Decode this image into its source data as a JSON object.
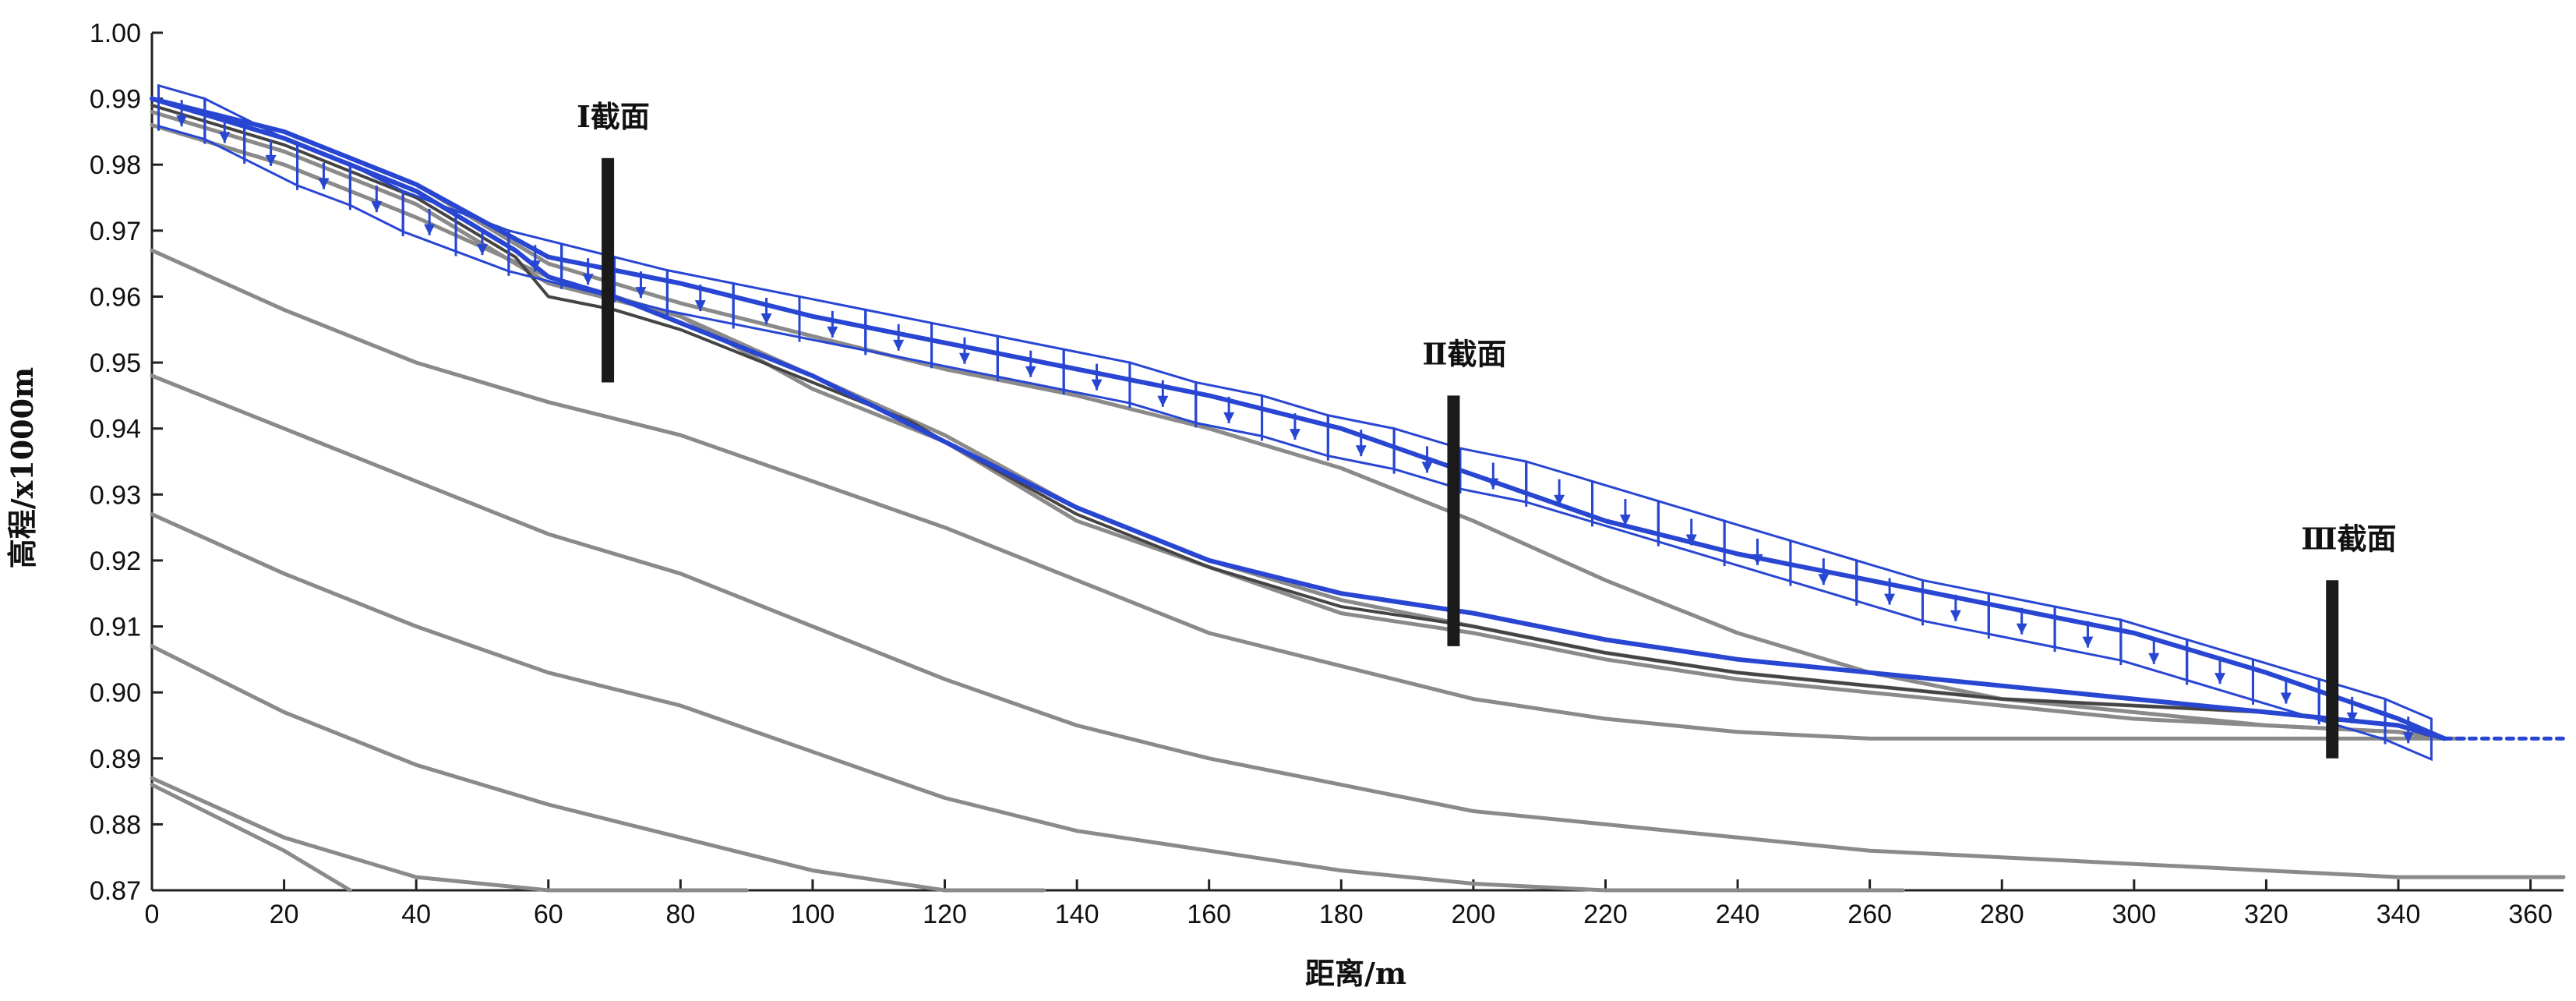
{
  "chart_data": {
    "type": "line",
    "title": "",
    "xlabel": "距离/m",
    "ylabel": "高程/x1000m",
    "xlim": [
      0,
      365
    ],
    "ylim": [
      0.87,
      1.0
    ],
    "xticks": [
      0,
      20,
      40,
      60,
      80,
      100,
      120,
      140,
      160,
      180,
      200,
      220,
      240,
      260,
      280,
      300,
      320,
      340,
      360
    ],
    "yticks": [
      "0.87",
      "0.88",
      "0.89",
      "0.90",
      "0.91",
      "0.92",
      "0.93",
      "0.94",
      "0.95",
      "0.96",
      "0.97",
      "0.98",
      "0.99",
      "1.00"
    ],
    "grid": false,
    "colors": {
      "gray": "#8a8a8a",
      "dark": "#444444",
      "blue": "#2846d2",
      "bar": "#1a1a1a"
    },
    "sections": [
      {
        "label": "Ⅰ截面",
        "x": 69,
        "y_top": 0.981,
        "y_bottom": 0.947
      },
      {
        "label": "Ⅱ截面",
        "x": 197,
        "y_top": 0.945,
        "y_bottom": 0.907
      },
      {
        "label": "Ⅲ截面",
        "x": 330,
        "y_top": 0.917,
        "y_bottom": 0.89
      }
    ],
    "series": [
      {
        "style": "gray",
        "x": [
          0,
          20,
          40,
          60,
          80,
          100,
          120,
          140,
          160,
          180,
          200,
          220,
          240,
          260,
          280,
          300,
          320,
          340,
          346
        ],
        "y": [
          0.99,
          0.985,
          0.977,
          0.965,
          0.959,
          0.954,
          0.949,
          0.945,
          0.94,
          0.934,
          0.926,
          0.917,
          0.909,
          0.903,
          0.899,
          0.897,
          0.895,
          0.894,
          0.893
        ]
      },
      {
        "style": "gray",
        "x": [
          0,
          20,
          40,
          60,
          80,
          100,
          120,
          140,
          160,
          180,
          200,
          220,
          240,
          260,
          280,
          300,
          320,
          340,
          346
        ],
        "y": [
          0.988,
          0.982,
          0.974,
          0.962,
          0.957,
          0.948,
          0.939,
          0.928,
          0.92,
          0.914,
          0.91,
          0.906,
          0.903,
          0.901,
          0.899,
          0.898,
          0.897,
          0.895,
          0.893
        ]
      },
      {
        "style": "gray",
        "x": [
          0,
          20,
          40,
          60,
          80,
          100,
          120,
          140,
          160,
          180,
          200,
          220,
          240,
          260,
          280,
          300,
          320,
          340,
          346
        ],
        "y": [
          0.986,
          0.98,
          0.972,
          0.963,
          0.957,
          0.946,
          0.938,
          0.926,
          0.919,
          0.912,
          0.909,
          0.905,
          0.902,
          0.9,
          0.898,
          0.896,
          0.895,
          0.894,
          0.893
        ]
      },
      {
        "style": "dark",
        "x": [
          0,
          20,
          40,
          55,
          60,
          70,
          80,
          100,
          115,
          120,
          140,
          160,
          180,
          200,
          220,
          240,
          260,
          280,
          300,
          320,
          340,
          346
        ],
        "y": [
          0.989,
          0.983,
          0.975,
          0.966,
          0.96,
          0.958,
          0.955,
          0.947,
          0.941,
          0.938,
          0.927,
          0.919,
          0.913,
          0.91,
          0.906,
          0.903,
          0.901,
          0.899,
          0.898,
          0.897,
          0.895,
          0.893
        ]
      },
      {
        "style": "gray",
        "x": [
          0,
          20,
          40,
          60,
          80,
          100,
          120,
          140,
          160,
          180,
          200,
          220,
          240,
          260,
          280,
          300,
          320,
          340,
          350
        ],
        "y": [
          0.967,
          0.958,
          0.95,
          0.944,
          0.939,
          0.932,
          0.925,
          0.917,
          0.909,
          0.904,
          0.899,
          0.896,
          0.894,
          0.893,
          0.893,
          0.893,
          0.893,
          0.893,
          0.893
        ]
      },
      {
        "style": "gray",
        "x": [
          0,
          20,
          40,
          60,
          80,
          100,
          120,
          140,
          160,
          180,
          200,
          220,
          240,
          260,
          280,
          300,
          320,
          340,
          350,
          365
        ],
        "y": [
          0.948,
          0.94,
          0.932,
          0.924,
          0.918,
          0.91,
          0.902,
          0.895,
          0.89,
          0.886,
          0.882,
          0.88,
          0.878,
          0.876,
          0.875,
          0.874,
          0.873,
          0.872,
          0.872,
          0.872
        ]
      },
      {
        "style": "gray",
        "x": [
          0,
          20,
          40,
          60,
          80,
          100,
          120,
          140,
          160,
          180,
          200,
          220,
          240,
          265
        ],
        "y": [
          0.927,
          0.918,
          0.91,
          0.903,
          0.898,
          0.891,
          0.884,
          0.879,
          0.876,
          0.873,
          0.871,
          0.87,
          0.869,
          0.868
        ]
      },
      {
        "style": "gray",
        "x": [
          0,
          20,
          40,
          60,
          80,
          100,
          120,
          135
        ],
        "y": [
          0.907,
          0.897,
          0.889,
          0.883,
          0.878,
          0.873,
          0.869,
          0.867
        ]
      },
      {
        "style": "gray",
        "x": [
          0,
          20,
          40,
          60,
          80,
          90
        ],
        "y": [
          0.887,
          0.878,
          0.872,
          0.868,
          0.866,
          0.866
        ]
      },
      {
        "style": "gray",
        "x": [
          0,
          20,
          30
        ],
        "y": [
          0.886,
          0.876,
          0.868
        ]
      },
      {
        "style": "blue",
        "x": [
          0,
          20,
          40,
          55,
          60,
          70,
          80,
          100,
          112,
          120,
          140,
          160,
          180,
          200,
          220,
          240,
          260,
          280,
          300,
          320,
          340,
          347
        ],
        "y": [
          0.99,
          0.984,
          0.976,
          0.967,
          0.963,
          0.96,
          0.956,
          0.948,
          0.942,
          0.938,
          0.928,
          0.92,
          0.915,
          0.912,
          0.908,
          0.905,
          0.903,
          0.901,
          0.899,
          0.897,
          0.895,
          0.893
        ]
      },
      {
        "style": "blue",
        "x": [
          0,
          20,
          40,
          60,
          80,
          100,
          120,
          140,
          160,
          180,
          200,
          220,
          240,
          260,
          280,
          300,
          320,
          340,
          347
        ],
        "y": [
          0.99,
          0.985,
          0.977,
          0.966,
          0.962,
          0.957,
          0.953,
          0.949,
          0.945,
          0.94,
          0.933,
          0.926,
          0.921,
          0.917,
          0.913,
          0.909,
          0.903,
          0.896,
          0.893
        ]
      },
      {
        "style": "blue-dashed",
        "x": [
          347,
          365
        ],
        "y": [
          0.893,
          0.893
        ]
      }
    ],
    "frames": {
      "x": [
        1,
        8,
        14,
        22,
        30,
        38,
        46,
        54,
        62,
        70,
        78,
        88,
        98,
        108,
        118,
        128,
        138,
        148,
        158,
        168,
        178,
        188,
        198,
        208,
        218,
        228,
        238,
        248,
        258,
        268,
        278,
        288,
        298,
        308,
        318,
        328,
        338,
        345
      ],
      "y": [
        0.992,
        0.99,
        0.987,
        0.983,
        0.98,
        0.976,
        0.973,
        0.97,
        0.968,
        0.966,
        0.964,
        0.962,
        0.96,
        0.958,
        0.956,
        0.954,
        0.952,
        0.95,
        0.947,
        0.945,
        0.942,
        0.94,
        0.937,
        0.935,
        0.932,
        0.929,
        0.926,
        0.923,
        0.92,
        0.917,
        0.915,
        0.913,
        0.911,
        0.908,
        0.905,
        0.902,
        0.899,
        0.896
      ]
    }
  }
}
